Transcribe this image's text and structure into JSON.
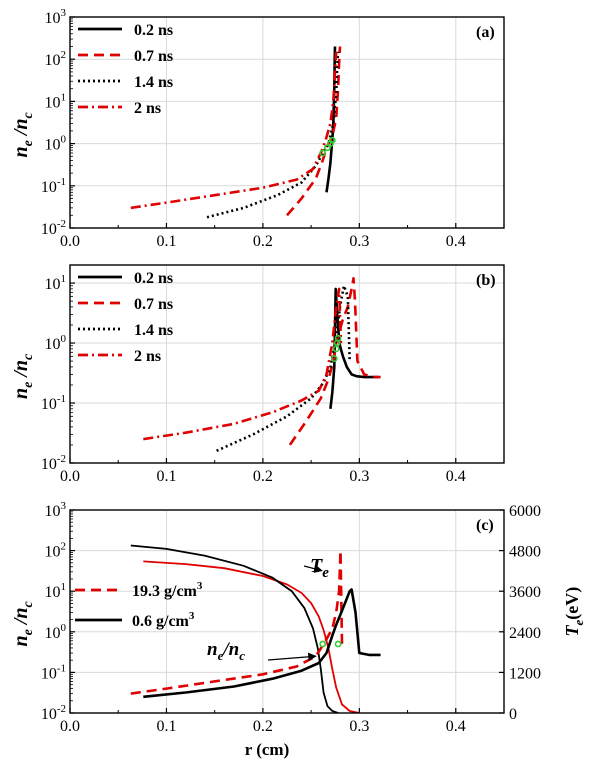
{
  "colors": {
    "black": "#000000",
    "red": "#e00000",
    "green": "#33cc33",
    "grid": "#d9d9d9"
  },
  "chart_data": [
    {
      "type": "line",
      "panel_label": "(a)",
      "ylabel": "n_e /n_c",
      "xlim": [
        0.0,
        0.45
      ],
      "ylim": [
        0.01,
        1000
      ],
      "yscale": "log",
      "grid": true,
      "legend_position": "top-left",
      "x_ticks": [
        "0.0",
        "0.1",
        "0.2",
        "0.3",
        "0.4"
      ],
      "y_ticks": [
        {
          "base": "10",
          "exp": "-2"
        },
        {
          "base": "10",
          "exp": "-1"
        },
        {
          "base": "10",
          "exp": "0"
        },
        {
          "base": "10",
          "exp": "1"
        },
        {
          "base": "10",
          "exp": "2"
        },
        {
          "base": "10",
          "exp": "3"
        }
      ],
      "series": [
        {
          "name": "0.2 ns",
          "color": "#000000",
          "dash": "solid",
          "x": [
            0.266,
            0.268,
            0.27,
            0.271,
            0.272,
            0.273,
            0.274,
            0.2745,
            0.2748
          ],
          "y": [
            0.07,
            0.15,
            0.35,
            0.7,
            1.2,
            3,
            20,
            100,
            200
          ]
        },
        {
          "name": "0.7 ns",
          "color": "#e00000",
          "dash": "dashed",
          "x": [
            0.225,
            0.24,
            0.255,
            0.262,
            0.267,
            0.272,
            0.276,
            0.278,
            0.279,
            0.28
          ],
          "y": [
            0.02,
            0.05,
            0.15,
            0.4,
            0.9,
            1.5,
            4,
            20,
            80,
            200
          ]
        },
        {
          "name": "1.4 ns",
          "color": "#000000",
          "dash": "dotted",
          "x": [
            0.142,
            0.18,
            0.215,
            0.24,
            0.255,
            0.262,
            0.268,
            0.273,
            0.276,
            0.277,
            0.278
          ],
          "y": [
            0.018,
            0.03,
            0.06,
            0.12,
            0.3,
            0.6,
            1.0,
            3,
            15,
            70,
            150
          ]
        },
        {
          "name": "2 ns",
          "color": "#e00000",
          "dash": "dashdot",
          "x": [
            0.063,
            0.1,
            0.15,
            0.2,
            0.235,
            0.252,
            0.26,
            0.265,
            0.27,
            0.273,
            0.275,
            0.276
          ],
          "y": [
            0.03,
            0.04,
            0.06,
            0.09,
            0.14,
            0.25,
            0.6,
            1.2,
            3,
            10,
            60,
            150
          ]
        }
      ],
      "markers": {
        "color": "#33cc33",
        "x": [
          0.262,
          0.267,
          0.27,
          0.272
        ],
        "y": [
          0.6,
          0.8,
          1.0,
          1.2
        ]
      }
    },
    {
      "type": "line",
      "panel_label": "(b)",
      "ylabel": "n_e /n_c",
      "xlim": [
        0.0,
        0.45
      ],
      "ylim": [
        0.01,
        20
      ],
      "yscale": "log",
      "grid": true,
      "legend_position": "top-left",
      "x_ticks": [
        "0.0",
        "0.1",
        "0.2",
        "0.3",
        "0.4"
      ],
      "y_ticks": [
        {
          "base": "10",
          "exp": "-2"
        },
        {
          "base": "10",
          "exp": "-1"
        },
        {
          "base": "10",
          "exp": "0"
        },
        {
          "base": "10",
          "exp": "1"
        }
      ],
      "series": [
        {
          "name": "0.2 ns",
          "color": "#000000",
          "dash": "solid",
          "x": [
            0.27,
            0.272,
            0.274,
            0.2755,
            0.277,
            0.2785,
            0.28,
            0.283,
            0.287,
            0.292,
            0.297,
            0.305,
            0.315,
            0.32
          ],
          "y": [
            0.08,
            0.15,
            0.4,
            8,
            3,
            1.5,
            0.9,
            0.6,
            0.4,
            0.3,
            0.28,
            0.27,
            0.27,
            0.27
          ]
        },
        {
          "name": "0.7 ns",
          "color": "#e00000",
          "dash": "dashed",
          "x": [
            0.228,
            0.245,
            0.26,
            0.268,
            0.273,
            0.276,
            0.279,
            0.283,
            0.288,
            0.292,
            0.294,
            0.2955,
            0.298,
            0.305,
            0.315,
            0.322
          ],
          "y": [
            0.02,
            0.05,
            0.12,
            0.25,
            0.5,
            1.0,
            1.5,
            2.5,
            4,
            8,
            12,
            5,
            0.5,
            0.3,
            0.27,
            0.27
          ]
        },
        {
          "name": "1.4 ns",
          "color": "#000000",
          "dash": "dotted",
          "x": [
            0.152,
            0.19,
            0.225,
            0.25,
            0.263,
            0.27,
            0.276,
            0.28,
            0.284,
            0.288,
            0.29
          ],
          "y": [
            0.016,
            0.03,
            0.06,
            0.12,
            0.22,
            0.4,
            1.2,
            4,
            9,
            6,
            0.5
          ]
        },
        {
          "name": "2 ns",
          "color": "#e00000",
          "dash": "dashdot",
          "x": [
            0.076,
            0.12,
            0.17,
            0.21,
            0.24,
            0.258,
            0.266,
            0.272,
            0.276,
            0.279,
            0.281
          ],
          "y": [
            0.025,
            0.032,
            0.045,
            0.07,
            0.11,
            0.16,
            0.3,
            1.0,
            4,
            8,
            1.0
          ]
        }
      ],
      "markers": {
        "color": "#33cc33",
        "x": [
          0.274,
          0.276,
          0.277,
          0.278
        ],
        "y": [
          0.55,
          0.8,
          1.0,
          1.2
        ]
      }
    },
    {
      "type": "line",
      "panel_label": "(c)",
      "xlabel": "r (cm)",
      "ylabel": "n_e /n_c",
      "ylabel_right": "T_e(eV)",
      "xlim": [
        0.0,
        0.45
      ],
      "ylim": [
        0.01,
        1000
      ],
      "yscale": "log",
      "ylim_right": [
        0,
        6000
      ],
      "grid": true,
      "legend_position": "middle-left",
      "x_ticks": [
        "0.0",
        "0.1",
        "0.2",
        "0.3",
        "0.4"
      ],
      "y_ticks": [
        {
          "base": "10",
          "exp": "-2"
        },
        {
          "base": "10",
          "exp": "-1"
        },
        {
          "base": "10",
          "exp": "0"
        },
        {
          "base": "10",
          "exp": "1"
        },
        {
          "base": "10",
          "exp": "2"
        },
        {
          "base": "10",
          "exp": "3"
        }
      ],
      "y_ticks_right": [
        "0",
        "1200",
        "2400",
        "3600",
        "4800",
        "6000"
      ],
      "legend": [
        {
          "label": "19.3 g/cm",
          "sup": "3",
          "color": "#e00000",
          "dash": "dashed"
        },
        {
          "label": "0.6 g/cm",
          "sup": "3",
          "color": "#000000",
          "dash": "solid"
        }
      ],
      "annotations": [
        {
          "text": "T",
          "sub": "e",
          "arrow_to": [
            0.253,
            32
          ]
        },
        {
          "text": "n",
          "sub": "e",
          "text2": "/n",
          "sub2": "c",
          "arrow_to": [
            0.258,
            0.25
          ]
        }
      ],
      "series_ne": [
        {
          "name": "19.3 g/cm3",
          "color": "#e00000",
          "dash": "dashed",
          "x": [
            0.063,
            0.1,
            0.15,
            0.2,
            0.235,
            0.255,
            0.265,
            0.272,
            0.276,
            0.279,
            0.2805,
            0.282
          ],
          "y": [
            0.03,
            0.04,
            0.06,
            0.09,
            0.14,
            0.25,
            0.6,
            1.2,
            3,
            10,
            100,
            0.5
          ]
        },
        {
          "name": "0.6 g/cm3",
          "color": "#000000",
          "dash": "solid",
          "x": [
            0.076,
            0.12,
            0.17,
            0.21,
            0.24,
            0.258,
            0.266,
            0.272,
            0.276,
            0.28,
            0.285,
            0.29,
            0.292,
            0.296,
            0.3,
            0.31,
            0.322
          ],
          "y": [
            0.025,
            0.032,
            0.045,
            0.07,
            0.11,
            0.17,
            0.3,
            0.8,
            1.5,
            2.5,
            5,
            10,
            11,
            3,
            0.3,
            0.27,
            0.27
          ]
        }
      ],
      "series_te": [
        {
          "name": "Te 19.3 g/cm3",
          "color": "#e00000",
          "dash": "solid",
          "x": [
            0.076,
            0.12,
            0.16,
            0.2,
            0.225,
            0.24,
            0.25,
            0.258,
            0.263,
            0.268,
            0.272,
            0.276,
            0.282,
            0.29,
            0.3
          ],
          "y": [
            4480,
            4400,
            4280,
            4050,
            3800,
            3550,
            3250,
            2850,
            2450,
            1900,
            1300,
            750,
            250,
            60,
            0
          ]
        },
        {
          "name": "Te 0.6 g/cm3",
          "color": "#000000",
          "dash": "solid",
          "x": [
            0.063,
            0.1,
            0.14,
            0.18,
            0.21,
            0.23,
            0.243,
            0.252,
            0.257,
            0.26,
            0.263,
            0.267,
            0.272,
            0.278
          ],
          "y": [
            4950,
            4850,
            4650,
            4350,
            4000,
            3600,
            3100,
            2500,
            1900,
            1300,
            600,
            200,
            60,
            0
          ]
        }
      ],
      "markers": {
        "color": "#33cc33",
        "x": [
          0.262,
          0.278
        ],
        "y": [
          0.5,
          0.5
        ]
      }
    }
  ]
}
